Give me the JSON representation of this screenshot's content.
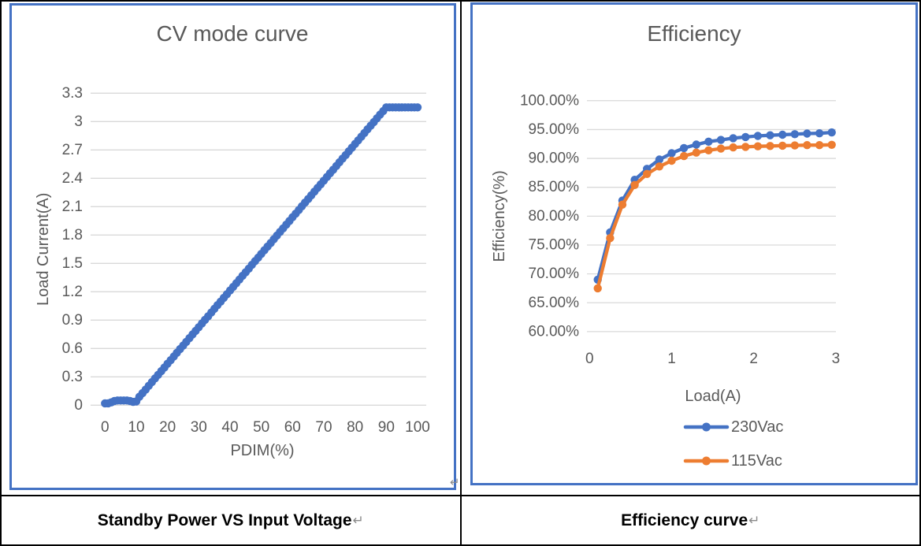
{
  "colors": {
    "series_blue": "#4472C4",
    "series_orange": "#ED7D31",
    "chart_border": "#4472C4",
    "gridline": "#D9D9D9",
    "text_gray": "#595959",
    "caption_black": "#000000",
    "mark_gray": "#8a8a8a"
  },
  "captions": [
    {
      "text": "Standby Power VS Input Voltage",
      "mark": "↵"
    },
    {
      "text": "Efficiency curve",
      "mark": "↵"
    }
  ],
  "stray_mark": "↵",
  "chart_data": [
    {
      "type": "line",
      "title": "CV mode curve",
      "xlabel": "PDIM(%)",
      "ylabel": "Load Current(A)",
      "xlim": [
        0,
        100
      ],
      "ylim": [
        0,
        3.3
      ],
      "grid": "horizontal",
      "legend": false,
      "xticks": {
        "values": [
          0,
          10,
          20,
          30,
          40,
          50,
          60,
          70,
          80,
          90,
          100
        ],
        "labels": [
          "0",
          "10",
          "20",
          "30",
          "40",
          "50",
          "60",
          "70",
          "80",
          "90",
          "100"
        ]
      },
      "yticks": {
        "values": [
          0,
          0.3,
          0.6,
          0.9,
          1.2,
          1.5,
          1.8,
          2.1,
          2.4,
          2.7,
          3,
          3.3
        ],
        "labels": [
          "0",
          "0.3",
          "0.6",
          "0.9",
          "1.2",
          "1.5",
          "1.8",
          "2.1",
          "2.4",
          "2.7",
          "3",
          "3.3"
        ]
      },
      "series": [
        {
          "name": "Load Current",
          "color": "#4472C4",
          "x": [
            0,
            1,
            2,
            3,
            4,
            5,
            6,
            7,
            8,
            9,
            10,
            11,
            12,
            13,
            14,
            15,
            16,
            17,
            18,
            19,
            20,
            21,
            22,
            23,
            24,
            25,
            26,
            27,
            28,
            29,
            30,
            31,
            32,
            33,
            34,
            35,
            36,
            37,
            38,
            39,
            40,
            41,
            42,
            43,
            44,
            45,
            46,
            47,
            48,
            49,
            50,
            51,
            52,
            53,
            54,
            55,
            56,
            57,
            58,
            59,
            60,
            61,
            62,
            63,
            64,
            65,
            66,
            67,
            68,
            69,
            70,
            71,
            72,
            73,
            74,
            75,
            76,
            77,
            78,
            79,
            80,
            81,
            82,
            83,
            84,
            85,
            86,
            87,
            88,
            89,
            90,
            91,
            92,
            93,
            94,
            95,
            96,
            97,
            98,
            99,
            100
          ],
          "y": [
            0.02,
            0.02,
            0.03,
            0.045,
            0.05,
            0.05,
            0.05,
            0.05,
            0.045,
            0.035,
            0.04,
            0.089,
            0.128,
            0.166,
            0.205,
            0.244,
            0.283,
            0.321,
            0.36,
            0.399,
            0.438,
            0.476,
            0.515,
            0.554,
            0.593,
            0.631,
            0.67,
            0.709,
            0.748,
            0.786,
            0.825,
            0.864,
            0.903,
            0.941,
            0.98,
            1.019,
            1.058,
            1.096,
            1.135,
            1.174,
            1.213,
            1.251,
            1.29,
            1.329,
            1.368,
            1.406,
            1.445,
            1.484,
            1.523,
            1.561,
            1.6,
            1.639,
            1.678,
            1.716,
            1.755,
            1.794,
            1.833,
            1.871,
            1.91,
            1.949,
            1.988,
            2.026,
            2.065,
            2.104,
            2.143,
            2.181,
            2.22,
            2.259,
            2.298,
            2.336,
            2.375,
            2.414,
            2.453,
            2.491,
            2.53,
            2.569,
            2.608,
            2.646,
            2.685,
            2.724,
            2.763,
            2.801,
            2.84,
            2.879,
            2.918,
            2.956,
            2.995,
            3.034,
            3.073,
            3.111,
            3.15,
            3.15,
            3.15,
            3.15,
            3.15,
            3.15,
            3.15,
            3.15,
            3.15,
            3.15,
            3.15
          ]
        }
      ]
    },
    {
      "type": "line",
      "title": "Efficiency",
      "xlabel": "Load(A)",
      "ylabel": "Efficiency(%)",
      "xlim": [
        0,
        3
      ],
      "ylim": [
        60,
        100
      ],
      "grid": "horizontal",
      "legend": true,
      "legend_position": "bottom",
      "xticks": {
        "values": [
          0,
          1,
          2,
          3
        ],
        "labels": [
          "0",
          "1",
          "2",
          "3"
        ]
      },
      "yticks": {
        "values": [
          60,
          65,
          70,
          75,
          80,
          85,
          90,
          95,
          100
        ],
        "labels": [
          "60.00%",
          "65.00%",
          "70.00%",
          "75.00%",
          "80.00%",
          "85.00%",
          "90.00%",
          "95.00%",
          "100.00%"
        ]
      },
      "series": [
        {
          "name": "230Vac",
          "color": "#4472C4",
          "x": [
            0.1,
            0.25,
            0.4,
            0.55,
            0.7,
            0.85,
            1.0,
            1.15,
            1.3,
            1.45,
            1.6,
            1.75,
            1.9,
            2.05,
            2.2,
            2.35,
            2.5,
            2.65,
            2.8,
            2.95
          ],
          "y": [
            69.0,
            77.2,
            82.7,
            86.3,
            88.2,
            89.8,
            90.9,
            91.8,
            92.4,
            92.9,
            93.2,
            93.5,
            93.7,
            93.9,
            94.0,
            94.1,
            94.2,
            94.3,
            94.35,
            94.5
          ]
        },
        {
          "name": "115Vac",
          "color": "#ED7D31",
          "x": [
            0.1,
            0.25,
            0.4,
            0.55,
            0.7,
            0.85,
            1.0,
            1.15,
            1.3,
            1.45,
            1.6,
            1.75,
            1.9,
            2.05,
            2.2,
            2.35,
            2.5,
            2.65,
            2.8,
            2.95
          ],
          "y": [
            67.5,
            76.2,
            82.0,
            85.4,
            87.3,
            88.6,
            89.6,
            90.4,
            91.0,
            91.4,
            91.7,
            91.9,
            92.0,
            92.1,
            92.15,
            92.2,
            92.25,
            92.3,
            92.3,
            92.35
          ]
        }
      ]
    }
  ]
}
